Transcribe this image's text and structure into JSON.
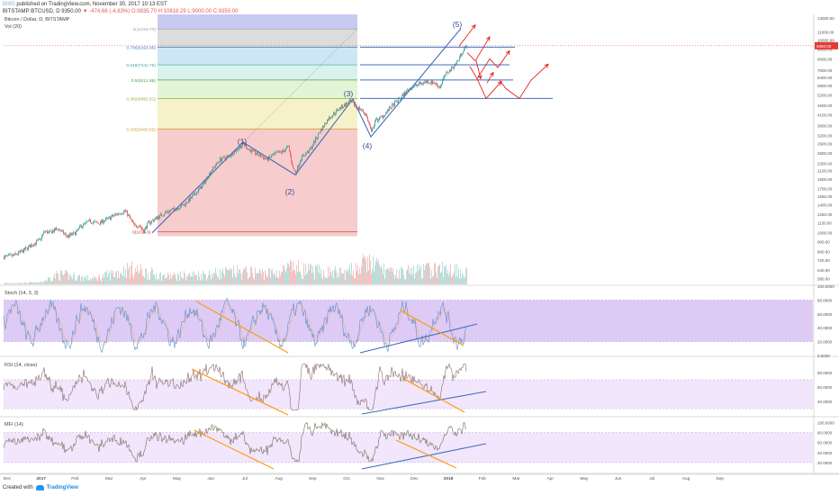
{
  "publish_line": {
    "user": "Bit85",
    "text": "published on TradingView.com, November 30, 2017 10:13 EST"
  },
  "ohlc_line": {
    "symbol": "BITSTAMP:BTCUSD, D",
    "last": "9350.00",
    "change": "-474.68 (-4.83%)",
    "open": "O:9835.70",
    "high": "H:10818.29",
    "low": "L:9000.00",
    "close": "C:9350.00"
  },
  "footer": {
    "created_with": "Created with",
    "brand": "TradingView"
  },
  "colors": {
    "up": "#26a69a",
    "down": "#ef5350",
    "trend_blue": "#3f6fc0",
    "trend_orange": "#ff9800",
    "arrow_red": "#e8201a",
    "stoch_k": "#5b8ec9",
    "stoch_d": "#f4a341",
    "osc_fill": "#e6d5f5",
    "osc_line": "#8a6a6a",
    "price_tag": "#e53935"
  },
  "chart_data": [
    {
      "type": "candlestick",
      "title": "Bitcoin / Dollar, D, BITSTAMP",
      "volume_label": "Vol (20)",
      "y_scale": "log",
      "y_ticks": [
        "13000.00",
        "11000.00",
        "10000.00",
        "9000.00",
        "8000.00",
        "7000.00",
        "6400.00",
        "5800.00",
        "5200.00",
        "4600.00",
        "4100.00",
        "3600.00",
        "3200.00",
        "2900.00",
        "2600.00",
        "2300.00",
        "2100.00",
        "1900.00",
        "1700.00",
        "1550.00",
        "1400.00",
        "1250.00",
        "1130.00",
        "1000.00",
        "900.00",
        "800.00",
        "720.00",
        "640.00",
        "580.00"
      ],
      "last_price_label": "9350.00",
      "x_tick_labels": [
        "Dec",
        "2017",
        "Feb",
        "Mar",
        "Apr",
        "May",
        "Jun",
        "Jul",
        "Aug",
        "Sep",
        "Oct",
        "Nov",
        "Dec",
        "2018",
        "Feb",
        "Mar",
        "Apr",
        "May",
        "Jun",
        "Jul",
        "Aug",
        "Sep"
      ],
      "fib_levels": [
        {
          "label": "1(11424.73)",
          "value": 11424.73
        },
        {
          "label": "0.786(9193.96)",
          "value": 9193.96
        },
        {
          "label": "0.618(7442.75)",
          "value": 7442.75
        },
        {
          "label": "0.5(6212.66)",
          "value": 6212.66
        },
        {
          "label": "0.382(4982.61)",
          "value": 4982.61
        },
        {
          "label": "0.236(3460.65)",
          "value": 3460.65
        },
        {
          "label": "0(1013.6)",
          "value": 1013.6
        }
      ],
      "wave_labels": [
        "(1)",
        "(2)",
        "(3)",
        "(4)",
        "(5)"
      ],
      "price_path": [
        [
          0,
          750
        ],
        [
          10,
          760
        ],
        [
          20,
          800
        ],
        [
          30,
          860
        ],
        [
          40,
          920
        ],
        [
          45,
          1020
        ],
        [
          50,
          1000
        ],
        [
          60,
          1050
        ],
        [
          70,
          960
        ],
        [
          80,
          1000
        ],
        [
          85,
          1080
        ],
        [
          95,
          1150
        ],
        [
          105,
          1120
        ],
        [
          115,
          1180
        ],
        [
          125,
          1250
        ],
        [
          135,
          1300
        ],
        [
          145,
          1080
        ],
        [
          150,
          1100
        ],
        [
          155,
          1020
        ],
        [
          160,
          1120
        ],
        [
          170,
          1200
        ],
        [
          180,
          1280
        ],
        [
          190,
          1330
        ],
        [
          200,
          1400
        ],
        [
          210,
          1550
        ],
        [
          220,
          1750
        ],
        [
          230,
          2100
        ],
        [
          240,
          2400
        ],
        [
          250,
          2500
        ],
        [
          260,
          2750
        ],
        [
          266,
          2900
        ],
        [
          272,
          2700
        ],
        [
          282,
          2550
        ],
        [
          292,
          2400
        ],
        [
          300,
          2550
        ],
        [
          310,
          2650
        ],
        [
          316,
          2800
        ],
        [
          321,
          2150
        ],
        [
          324,
          2050
        ],
        [
          330,
          2450
        ],
        [
          340,
          2700
        ],
        [
          350,
          3300
        ],
        [
          360,
          3900
        ],
        [
          372,
          4400
        ],
        [
          384,
          4800
        ],
        [
          390,
          4550
        ],
        [
          398,
          4300
        ],
        [
          402,
          4100
        ],
        [
          406,
          3600
        ],
        [
          408,
          3300
        ],
        [
          412,
          3800
        ],
        [
          420,
          4000
        ],
        [
          430,
          4500
        ],
        [
          440,
          5000
        ],
        [
          450,
          5600
        ],
        [
          460,
          5900
        ],
        [
          470,
          6100
        ],
        [
          478,
          6000
        ],
        [
          484,
          5700
        ],
        [
          490,
          6600
        ],
        [
          498,
          7200
        ],
        [
          504,
          7800
        ],
        [
          510,
          8900
        ],
        [
          514,
          9350
        ]
      ],
      "volume_profile": [
        [
          0,
          0.05
        ],
        [
          40,
          0.08
        ],
        [
          60,
          0.45
        ],
        [
          100,
          0.25
        ],
        [
          140,
          0.7
        ],
        [
          180,
          0.35
        ],
        [
          220,
          0.45
        ],
        [
          260,
          0.55
        ],
        [
          300,
          0.5
        ],
        [
          320,
          0.75
        ],
        [
          340,
          0.6
        ],
        [
          380,
          0.5
        ],
        [
          405,
          1.0
        ],
        [
          430,
          0.5
        ],
        [
          470,
          0.65
        ],
        [
          500,
          0.7
        ],
        [
          514,
          0.55
        ]
      ]
    },
    {
      "type": "line",
      "title": "Stoch (14, 3, 3)",
      "y_ticks": [
        "100.0000",
        "80.0000",
        "60.0000",
        "40.0000",
        "20.0000",
        "0.0000"
      ],
      "bands": [
        20,
        80
      ],
      "ylim": [
        0,
        100
      ]
    },
    {
      "type": "line",
      "title": "RSI (14, close)",
      "y_ticks": [
        "80.0000",
        "60.0000",
        "40.0000"
      ],
      "bands": [
        30,
        70
      ],
      "ylim": [
        20,
        100
      ]
    },
    {
      "type": "line",
      "title": "MFI (14)",
      "y_ticks": [
        "100.0000",
        "80.0000",
        "60.0000",
        "40.0000",
        "20.0000"
      ],
      "bands": [
        20,
        80
      ],
      "ylim": [
        0,
        110
      ]
    }
  ]
}
